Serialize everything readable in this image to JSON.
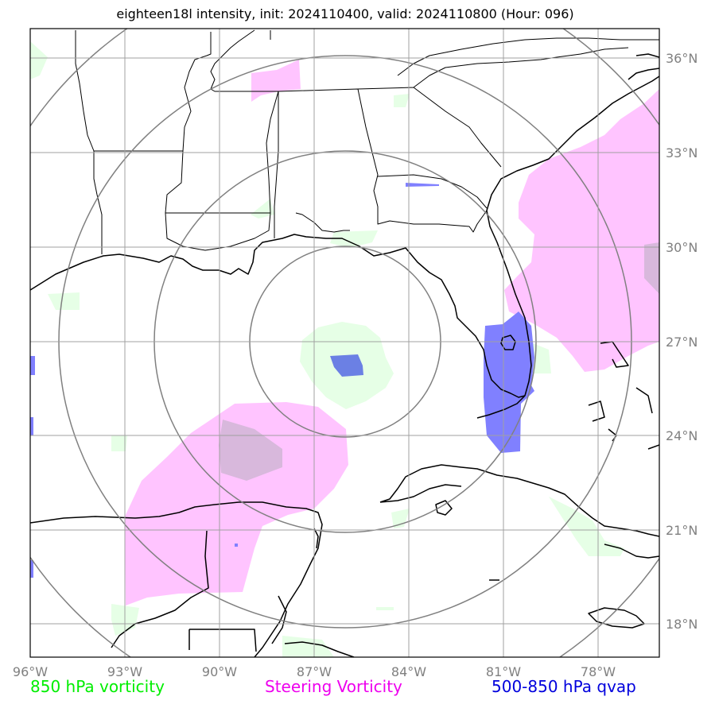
{
  "title": "eighteen18l intensity, init: 2024110400, valid: 2024110800 (Hour: 096)",
  "map": {
    "lon_range": [
      -96,
      -76
    ],
    "lat_range": [
      17,
      37
    ],
    "lon_ticks": [
      "96°W",
      "93°W",
      "90°W",
      "87°W",
      "84°W",
      "81°W",
      "78°W"
    ],
    "lat_ticks": [
      "36°N",
      "33°N",
      "30°N",
      "27°N",
      "24°N",
      "21°N",
      "18°N"
    ],
    "range_ring_center": [
      -86,
      27
    ],
    "colors": {
      "vorticity_850": "#e6ffe6",
      "steering_vorticity": "#ffc4ff",
      "qvap": "#8080ff",
      "grid": "#a0a0a0",
      "rings": "#808080"
    }
  },
  "legend": {
    "vort": {
      "label": "850 hPa vorticity",
      "color": "#00ee00"
    },
    "steer": {
      "label": "Steering Vorticity",
      "color": "#ee00ee"
    },
    "qvap": {
      "label": "500-850 hPa qvap",
      "color": "#0000dd"
    }
  }
}
